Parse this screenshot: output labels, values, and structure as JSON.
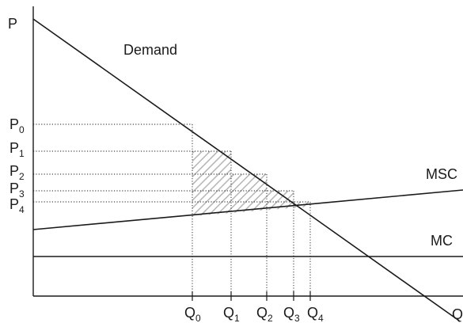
{
  "axes": {
    "y_label": "P",
    "x_label": "Q"
  },
  "curves": {
    "demand": "Demand",
    "msc": "MSC",
    "mc": "MC"
  },
  "price_labels": [
    {
      "main": "P",
      "sub": "0"
    },
    {
      "main": "P",
      "sub": "1"
    },
    {
      "main": "P",
      "sub": "2"
    },
    {
      "main": "P",
      "sub": "3"
    },
    {
      "main": "P",
      "sub": "4"
    }
  ],
  "quantity_labels": [
    {
      "main": "Q",
      "sub": "0"
    },
    {
      "main": "Q",
      "sub": "1"
    },
    {
      "main": "Q",
      "sub": "2"
    },
    {
      "main": "Q",
      "sub": "3"
    },
    {
      "main": "Q",
      "sub": "4"
    }
  ],
  "colors": {
    "ink": "#1a1a1a",
    "hatch": "#b5b5b5",
    "background": "#ffffff"
  }
}
